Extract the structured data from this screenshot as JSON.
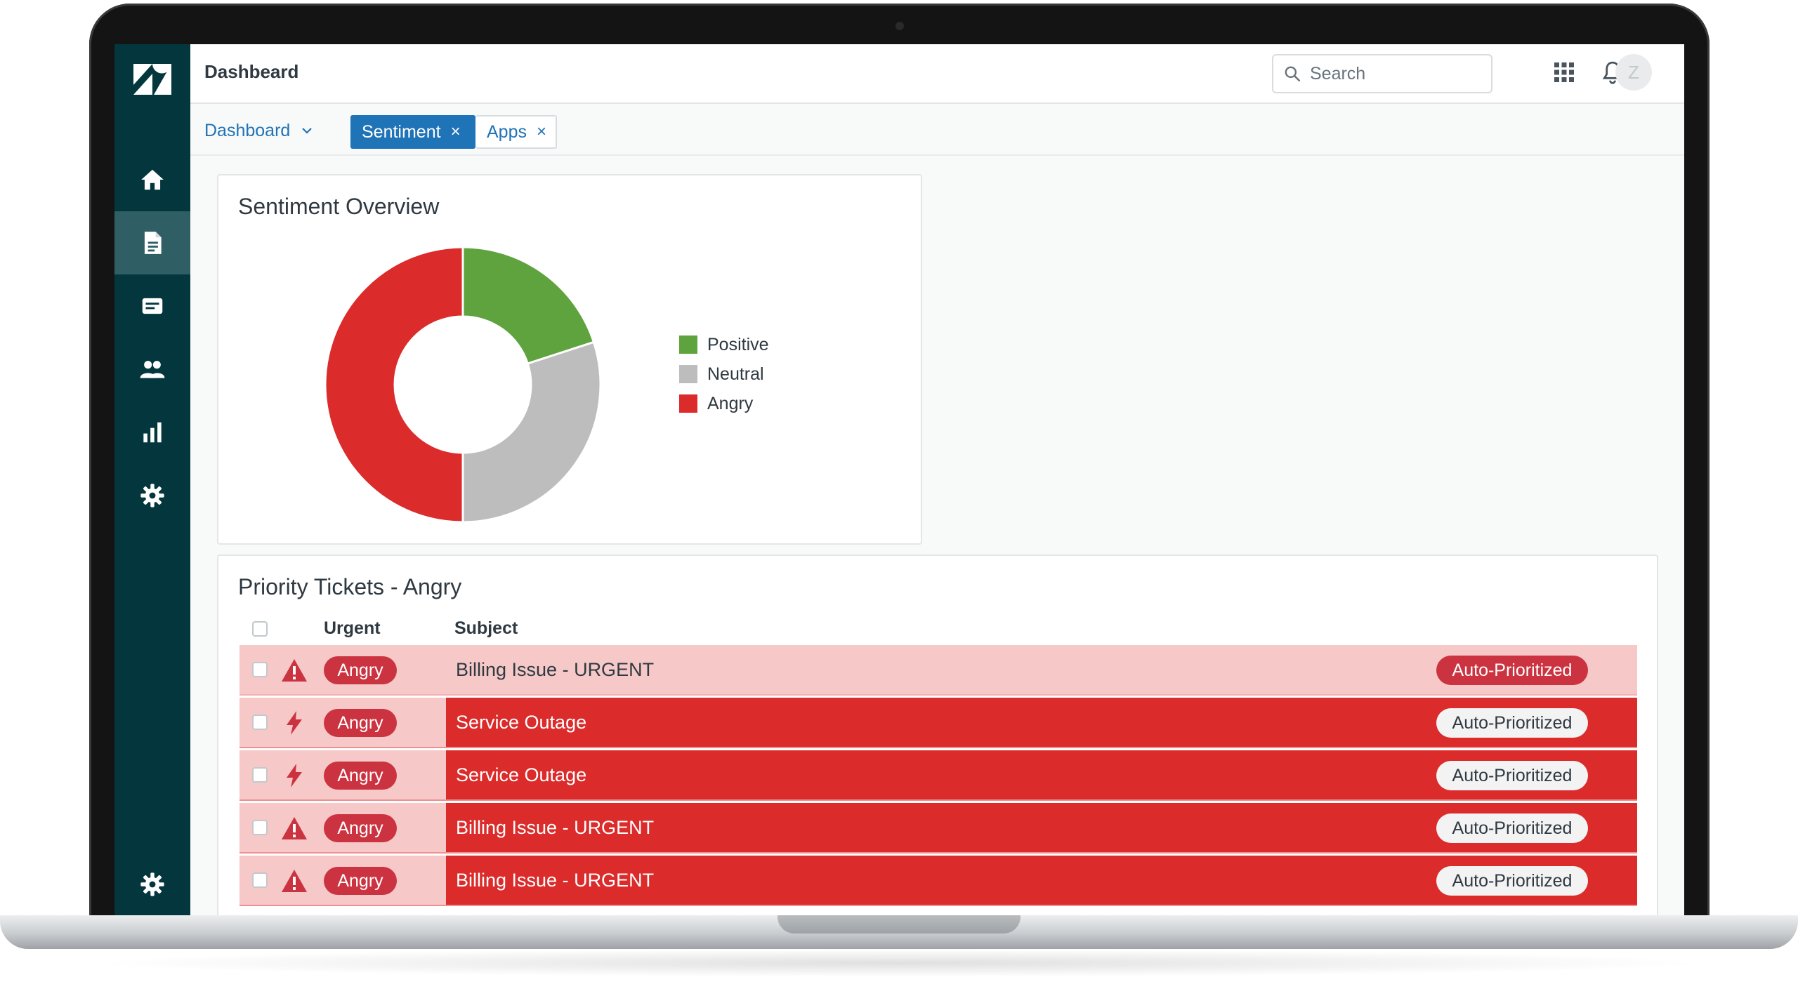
{
  "colors": {
    "sidebar_bg": "#03363d",
    "accent_blue": "#1f73b7",
    "positive": "#5ea33d",
    "neutral": "#bdbdbd",
    "angry": "#db2b2b"
  },
  "topbar": {
    "title": "Dashbeard",
    "search_placeholder": "Search",
    "avatar_initial": "Z"
  },
  "tabs": {
    "dashboard_label": "Dashboard",
    "sentiment_label": "Sentiment",
    "apps_label": "Apps",
    "close_glyph": "×"
  },
  "sidebar": {
    "items": [
      "logo-icon",
      "home-icon",
      "document-icon",
      "chat-icon",
      "users-icon",
      "reports-icon",
      "settings-icon",
      "admin-gear-icon"
    ]
  },
  "sentiment": {
    "title": "Sentiment Overview",
    "chart_data": {
      "type": "pie",
      "labels": [
        "Positive",
        "Neutral",
        "Angry"
      ],
      "values": [
        20,
        30,
        50
      ],
      "colors": [
        "#5ea33d",
        "#bdbdbd",
        "#db2b2b"
      ],
      "legend_position": "right"
    }
  },
  "tickets": {
    "title": "Priority Tickets - Angry",
    "columns": {
      "urgent": "Urgent",
      "subject": "Subject"
    },
    "rows": [
      {
        "icon": "warning-icon",
        "badge": "Angry",
        "subject": "Billing Issue - URGENT",
        "tag": "Auto-Prioritized",
        "style": "light"
      },
      {
        "icon": "lightning-icon",
        "badge": "Angry",
        "subject": "Service Outage",
        "tag": "Auto-Prioritized",
        "style": "dark"
      },
      {
        "icon": "lightning-icon",
        "badge": "Angry",
        "subject": "Service Outage",
        "tag": "Auto-Prioritized",
        "style": "dark"
      },
      {
        "icon": "warning-icon",
        "badge": "Angry",
        "subject": "Billing Issue - URGENT",
        "tag": "Auto-Prioritized",
        "style": "dark"
      },
      {
        "icon": "warning-icon",
        "badge": "Angry",
        "subject": "Billing Issue - URGENT",
        "tag": "Auto-Prioritized",
        "style": "dark"
      }
    ]
  }
}
